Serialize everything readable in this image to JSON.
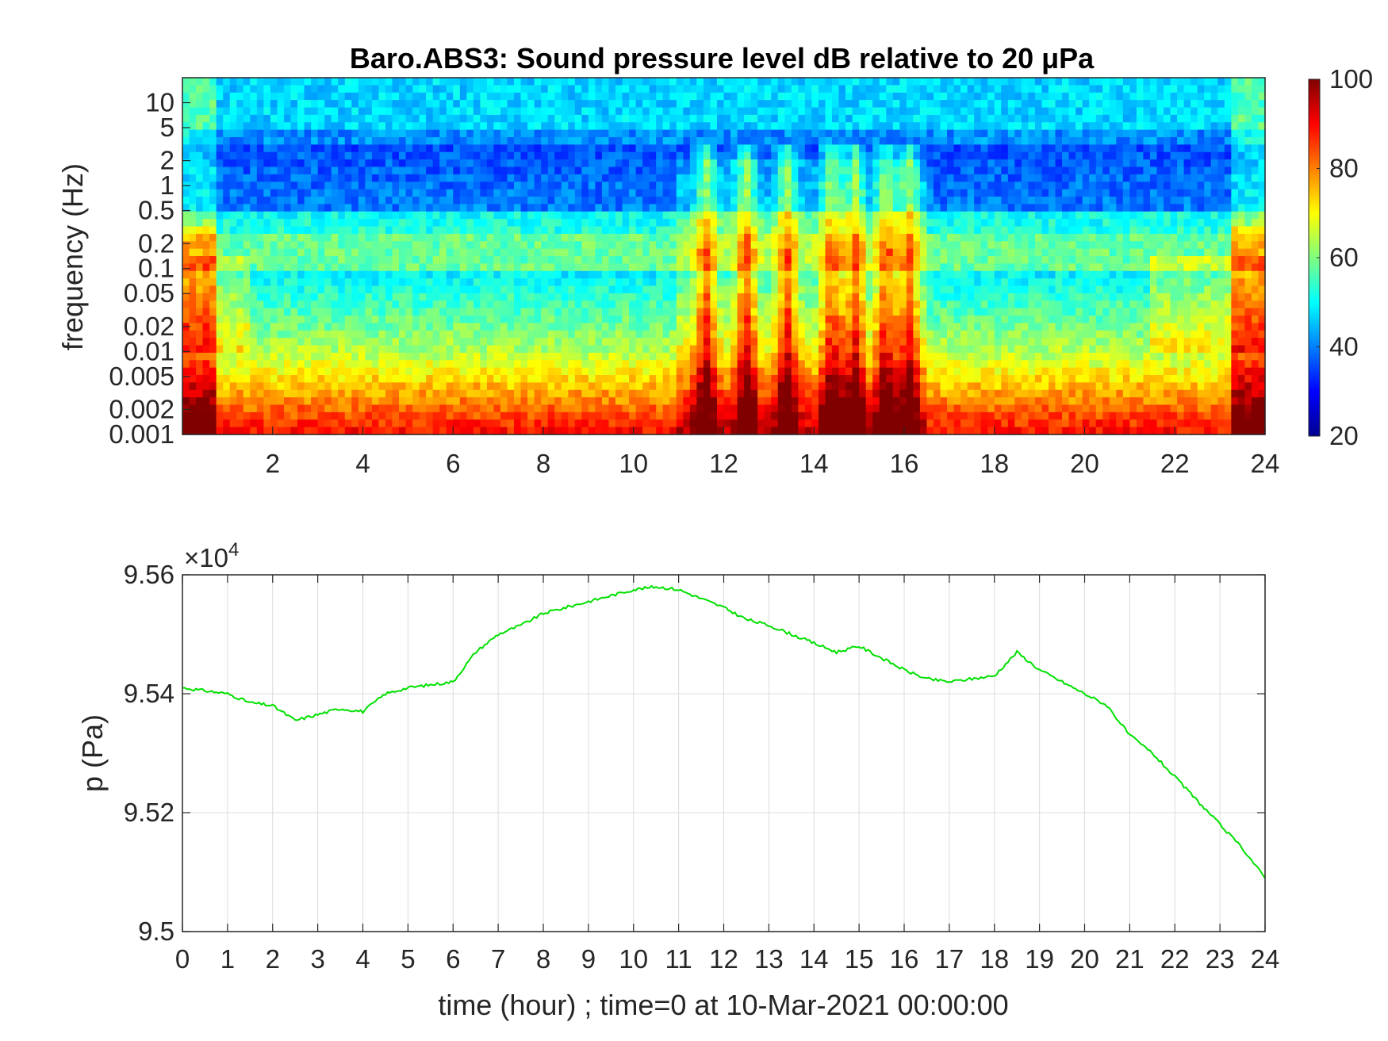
{
  "chart_data": [
    {
      "type": "heatmap",
      "title": "Baro.ABS3: Sound pressure level dB relative to 20 μPa",
      "ylabel": "frequency (Hz)",
      "xlabel": "",
      "x_ticks": [
        "2",
        "4",
        "6",
        "8",
        "10",
        "12",
        "14",
        "16",
        "18",
        "20",
        "22",
        "24"
      ],
      "xlim": [
        0,
        24
      ],
      "y_scale": "log",
      "ylim": [
        0.001,
        20
      ],
      "y_ticks": [
        "10",
        "5",
        "2",
        "1",
        "0.5",
        "0.2",
        "0.1",
        "0.05",
        "0.02",
        "0.01",
        "0.005",
        "0.002",
        "0.001"
      ],
      "colorbar": {
        "min": 20,
        "max": 100,
        "ticks": [
          "100",
          "80",
          "60",
          "40",
          "20"
        ],
        "colormap": "jet"
      },
      "bursts_hours": [
        11.6,
        12.5,
        13.4,
        14.4,
        14.9,
        15.6,
        16.1
      ],
      "quiet_band_hours": [
        1.5,
        21.5
      ]
    },
    {
      "type": "line",
      "ylabel": "p (Pa)",
      "xlabel": "time (hour) ; time=0 at 10-Mar-2021 00:00:00",
      "exponent_label": "×10",
      "exponent_power": "4",
      "x_ticks": [
        "0",
        "1",
        "2",
        "3",
        "4",
        "5",
        "6",
        "7",
        "8",
        "9",
        "10",
        "11",
        "12",
        "13",
        "14",
        "15",
        "16",
        "17",
        "18",
        "19",
        "20",
        "21",
        "22",
        "23",
        "24"
      ],
      "y_ticks": [
        "9.56",
        "9.54",
        "9.52",
        "9.5"
      ],
      "xlim": [
        0,
        24
      ],
      "ylim": [
        95000,
        95600
      ],
      "grid": true,
      "series": [
        {
          "color": "#00e000",
          "x": [
            0,
            0.5,
            1,
            1.5,
            2,
            2.5,
            3,
            3.5,
            4,
            4.5,
            5,
            5.5,
            6,
            6.5,
            7,
            7.5,
            8,
            8.5,
            9,
            9.5,
            10,
            10.5,
            11,
            11.5,
            12,
            12.5,
            13,
            13.5,
            14,
            14.5,
            15,
            15.5,
            16,
            16.5,
            17,
            17.5,
            18,
            18.5,
            19,
            19.5,
            20,
            20.5,
            21,
            21.5,
            22,
            22.5,
            23,
            23.5,
            24
          ],
          "y": [
            95410,
            95405,
            95400,
            95385,
            95380,
            95355,
            95365,
            95375,
            95370,
            95400,
            95410,
            95415,
            95420,
            95470,
            95500,
            95515,
            95535,
            95545,
            95555,
            95565,
            95575,
            95580,
            95575,
            95560,
            95545,
            95525,
            95515,
            95500,
            95485,
            95470,
            95480,
            95460,
            95440,
            95425,
            95420,
            95425,
            95430,
            95470,
            95440,
            95420,
            95400,
            95380,
            95330,
            95300,
            95260,
            95220,
            95180,
            95140,
            95090
          ]
        }
      ]
    }
  ]
}
